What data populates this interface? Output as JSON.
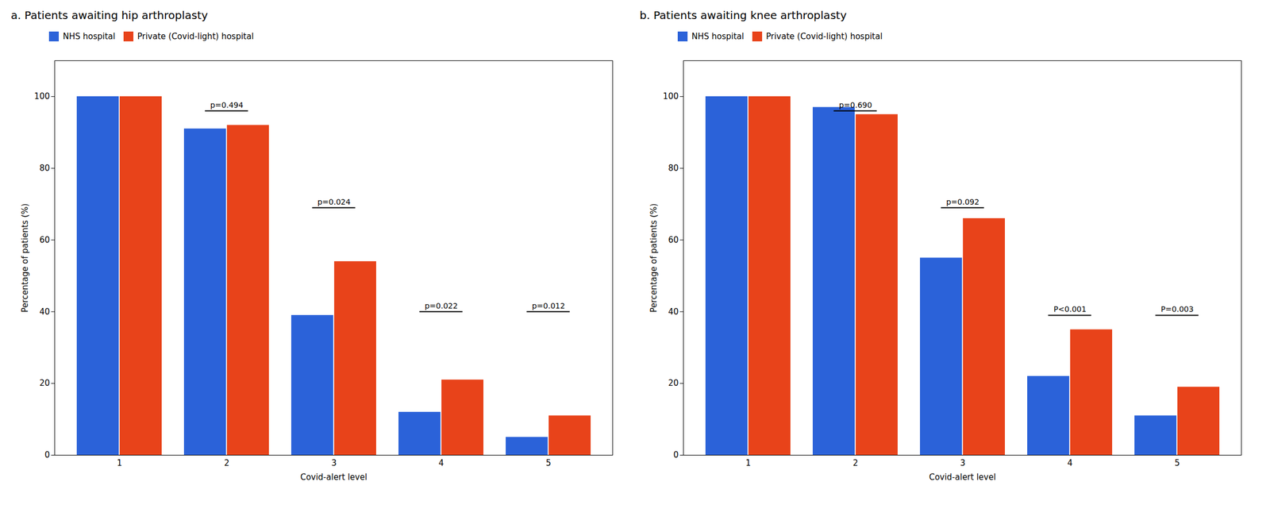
{
  "chart_data": [
    {
      "type": "bar",
      "title": "a. Patients awaiting hip arthroplasty",
      "categories": [
        "1",
        "2",
        "3",
        "4",
        "5"
      ],
      "series": [
        {
          "name": "NHS hospital",
          "color": "#2B62D9",
          "values": [
            100,
            91,
            39,
            12,
            5
          ]
        },
        {
          "name": "Private (Covid-light) hospital",
          "color": "#E8431A",
          "values": [
            100,
            92,
            54,
            21,
            11
          ]
        }
      ],
      "annotations": [
        {
          "text": "p=0.494",
          "x": "2",
          "y": 96
        },
        {
          "text": "p=0.024",
          "x": "3",
          "y": 69
        },
        {
          "text": "p=0.022",
          "x": "4",
          "y": 40
        },
        {
          "text": "p=0.012",
          "x": "5",
          "y": 40
        }
      ],
      "x_label": "Covid-alert level",
      "y_label": "Percentage of patients (%)",
      "ylim": [
        0,
        110
      ],
      "yticks": [
        0,
        20,
        40,
        60,
        80,
        100
      ],
      "grid": false,
      "legend": "upper left"
    },
    {
      "type": "bar",
      "title": "b. Patients awaiting knee arthroplasty",
      "categories": [
        "1",
        "2",
        "3",
        "4",
        "5"
      ],
      "series": [
        {
          "name": "NHS hospital",
          "color": "#2B62D9",
          "values": [
            100,
            97,
            55,
            22,
            11
          ]
        },
        {
          "name": "Private (Covid-light) hospital",
          "color": "#E8431A",
          "values": [
            100,
            95,
            66,
            35,
            19
          ]
        }
      ],
      "annotations": [
        {
          "text": "p=0.690",
          "x": "2",
          "y": 96
        },
        {
          "text": "p=0.092",
          "x": "3",
          "y": 69
        },
        {
          "text": "P<0.001",
          "x": "4",
          "y": 39
        },
        {
          "text": "P=0.003",
          "x": "5",
          "y": 39
        }
      ],
      "x_label": "Covid-alert level",
      "y_label": "Percentage of patients (%)",
      "ylim": [
        0,
        110
      ],
      "yticks": [
        0,
        20,
        40,
        60,
        80,
        100
      ],
      "grid": false,
      "legend": "upper left"
    }
  ]
}
